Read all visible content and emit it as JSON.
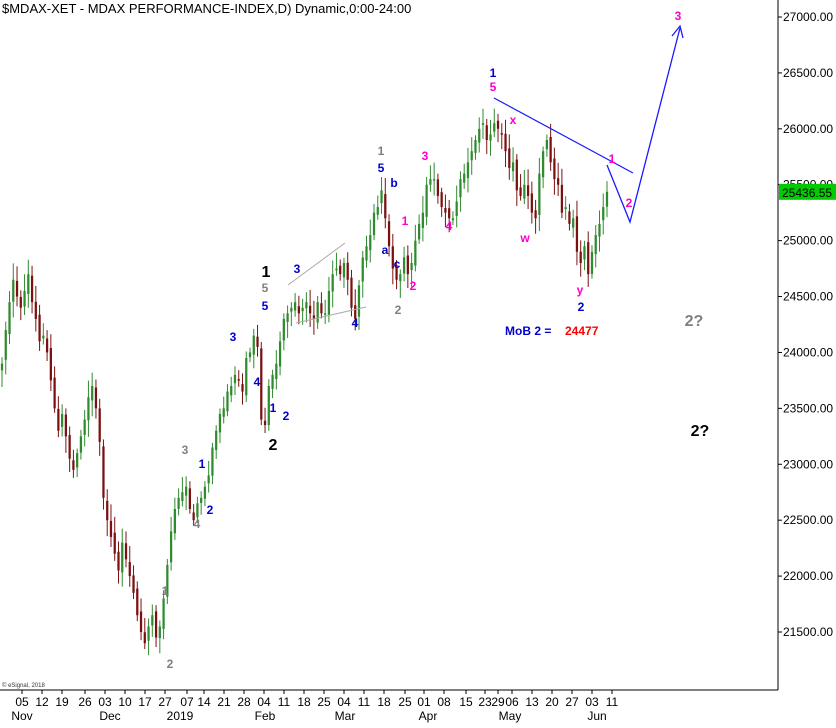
{
  "chart_data": {
    "type": "candlestick",
    "title": "$MDAX-XET - MDAX PERFORMANCE-INDEX,D) Dynamic,0:00-24:00",
    "copyright": "© eSignal, 2018",
    "ylim": [
      21000,
      27250
    ],
    "yticks": [
      "27000.00",
      "26500.00",
      "26000.00",
      "25500.00",
      "25000.00",
      "24500.00",
      "24000.00",
      "23500.00",
      "23000.00",
      "22500.00",
      "22000.00",
      "21500.00"
    ],
    "last_price": "25436.55",
    "x_day_ticks": [
      "05",
      "12",
      "19",
      "26",
      "03",
      "10",
      "17",
      "27",
      "07",
      "14",
      "21",
      "28",
      "04",
      "11",
      "18",
      "25",
      "04",
      "11",
      "18",
      "25",
      "01",
      "08",
      "15",
      "23",
      "29",
      "06",
      "13",
      "20",
      "27",
      "03",
      "11"
    ],
    "x_month_labels": [
      "Nov",
      "Dec",
      "2019",
      "Feb",
      "Mar",
      "Apr",
      "May",
      "Jun"
    ],
    "colors": {
      "up": "#2e8b2e",
      "down": "#7a1010",
      "blue": "#0000cc",
      "magenta": "#ff00cc",
      "gray": "#808080",
      "black": "#000000",
      "red": "#ff0000",
      "proj": "#1a1aff",
      "price_box": "#00cc00"
    },
    "closes": [
      23900,
      24200,
      24450,
      24650,
      24500,
      24400,
      24550,
      24700,
      24450,
      24300,
      24100,
      24150,
      24000,
      23750,
      23500,
      23300,
      23450,
      23250,
      23050,
      22950,
      23100,
      23250,
      23400,
      23600,
      23700,
      23500,
      23200,
      22700,
      22500,
      22350,
      22200,
      22050,
      22300,
      22150,
      22000,
      21850,
      21650,
      21500,
      21400,
      21550,
      21650,
      21450,
      21550,
      21800,
      22100,
      22400,
      22600,
      22700,
      22750,
      22800,
      22600,
      22500,
      22650,
      22700,
      22800,
      22900,
      23150,
      23300,
      23450,
      23500,
      23650,
      23700,
      23800,
      23750,
      23650,
      23950,
      24000,
      24150,
      24050,
      23400,
      23350,
      23700,
      23800,
      23900,
      24100,
      24300,
      24350,
      24400,
      24450,
      24350,
      24400,
      24450,
      24350,
      24300,
      24450,
      24350,
      24350,
      24550,
      24700,
      24750,
      24700,
      24800,
      24650,
      24400,
      24300,
      24600,
      24850,
      24950,
      25050,
      25250,
      25300,
      25450,
      25200,
      24950,
      24750,
      24650,
      24700,
      24850,
      24700,
      24800,
      25000,
      25150,
      25250,
      25500,
      25550,
      25550,
      25400,
      25300,
      25250,
      25200,
      25200,
      25350,
      25550,
      25600,
      25700,
      25800,
      25900,
      26000,
      26050,
      25900,
      25950,
      26050,
      26000,
      25950,
      25800,
      25650,
      25700,
      25450,
      25400,
      25500,
      25400,
      25250,
      25200,
      25600,
      25800,
      25900,
      25700,
      25550,
      25500,
      25250,
      25300,
      25150,
      25200,
      24900,
      24800,
      24950,
      24700,
      24900,
      25050,
      25150,
      25300,
      25436.55
    ],
    "wave_labels": [
      {
        "text": "1",
        "color": "black",
        "big": true
      },
      {
        "text": "5",
        "color": "gray"
      },
      {
        "text": "5",
        "color": "blue"
      },
      {
        "text": "3",
        "color": "blue"
      },
      {
        "text": "4",
        "color": "blue"
      },
      {
        "text": "1",
        "color": "blue"
      },
      {
        "text": "2",
        "color": "blue"
      },
      {
        "text": "2",
        "color": "black",
        "big": true
      },
      {
        "text": "3",
        "color": "blue"
      },
      {
        "text": "4",
        "color": "blue"
      },
      {
        "text": "3",
        "color": "gray"
      },
      {
        "text": "1",
        "color": "blue"
      },
      {
        "text": "2",
        "color": "blue"
      },
      {
        "text": "4",
        "color": "gray"
      },
      {
        "text": "1",
        "color": "gray"
      },
      {
        "text": "2",
        "color": "gray"
      },
      {
        "text": "1",
        "color": "gray"
      },
      {
        "text": "5",
        "color": "blue"
      },
      {
        "text": "b",
        "color": "blue"
      },
      {
        "text": "a",
        "color": "blue"
      },
      {
        "text": "c",
        "color": "blue"
      },
      {
        "text": "2",
        "color": "gray"
      },
      {
        "text": "1",
        "color": "magenta"
      },
      {
        "text": "2",
        "color": "magenta"
      },
      {
        "text": "3",
        "color": "magenta"
      },
      {
        "text": "4",
        "color": "magenta"
      },
      {
        "text": "1",
        "color": "blue"
      },
      {
        "text": "5",
        "color": "magenta"
      },
      {
        "text": "x",
        "color": "magenta"
      },
      {
        "text": "w",
        "color": "magenta"
      },
      {
        "text": "y",
        "color": "magenta"
      },
      {
        "text": "2",
        "color": "blue"
      },
      {
        "text": "1",
        "color": "magenta"
      },
      {
        "text": "2",
        "color": "magenta"
      },
      {
        "text": "3",
        "color": "magenta"
      },
      {
        "text": "2?",
        "color": "gray",
        "big": true
      },
      {
        "text": "2?",
        "color": "black",
        "big": true
      }
    ],
    "annotation": {
      "label": "MoB 2 = ",
      "value": "24477"
    },
    "projection_path": [
      [
        "2019-06-07",
        25600
      ],
      [
        "2019-06-12",
        25050
      ],
      [
        "2019-06-24",
        26900
      ]
    ],
    "trendline": [
      [
        "2019-04-29",
        26200
      ],
      [
        "2019-06-12",
        25450
      ]
    ]
  }
}
